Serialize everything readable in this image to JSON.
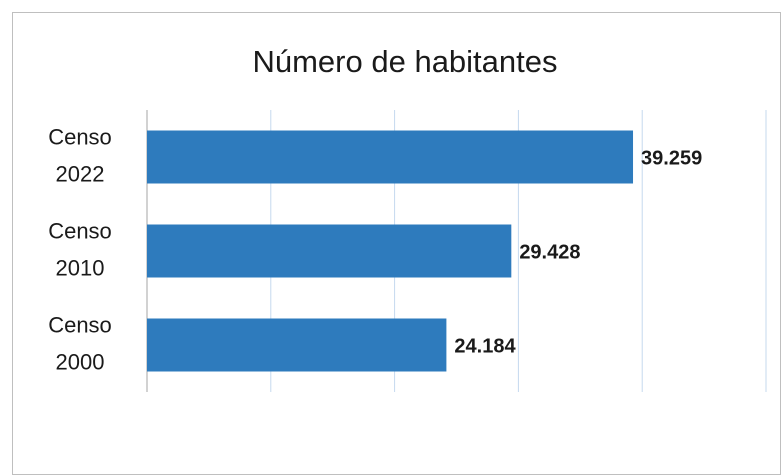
{
  "chart_data": {
    "type": "bar",
    "orientation": "horizontal",
    "title": "Número de habitantes",
    "categories": [
      "Censo 2022",
      "Censo 2010",
      "Censo 2000"
    ],
    "values": [
      39259,
      29428,
      24184
    ],
    "value_labels": [
      "39.259",
      "29.428",
      "24.184"
    ],
    "color": "#2e7bbd",
    "xlim": [
      0,
      50000
    ],
    "xticks": [
      0,
      10000,
      20000,
      30000,
      40000,
      50000
    ],
    "grid": true
  }
}
